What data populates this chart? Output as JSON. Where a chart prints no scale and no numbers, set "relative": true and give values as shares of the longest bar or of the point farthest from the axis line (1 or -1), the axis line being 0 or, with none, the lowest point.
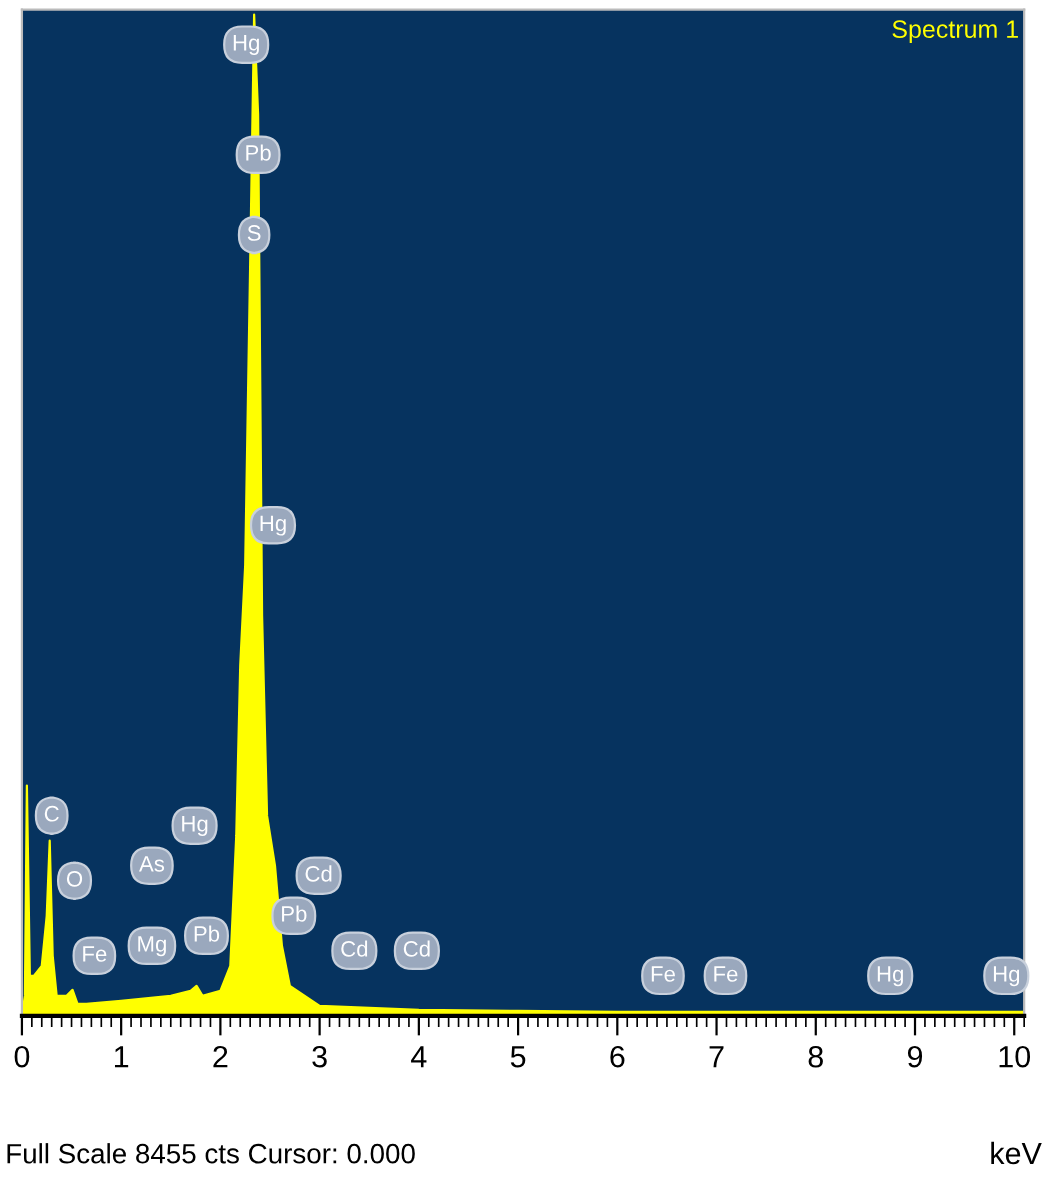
{
  "chart_data": {
    "type": "area",
    "title": "Spectrum 1",
    "xlabel": "keV",
    "relative": true,
    "x": [
      0,
      0.03,
      0.05,
      0.08,
      0.12,
      0.2,
      0.25,
      0.28,
      0.31,
      0.35,
      0.45,
      0.51,
      0.56,
      0.65,
      1.0,
      1.5,
      1.7,
      1.76,
      1.82,
      2.0,
      2.1,
      2.16,
      2.2,
      2.25,
      2.3,
      2.34,
      2.38,
      2.42,
      2.47,
      2.55,
      2.62,
      2.7,
      3.0,
      3.5,
      4.0,
      5.0,
      6.0,
      8.0,
      10.1
    ],
    "series": [
      {
        "color": "#ffff00",
        "values": [
          0,
          0.02,
          0.23,
          0.04,
          0.04,
          0.05,
          0.1,
          0.175,
          0.06,
          0.02,
          0.02,
          0.026,
          0.012,
          0.012,
          0.015,
          0.02,
          0.025,
          0.03,
          0.02,
          0.025,
          0.05,
          0.18,
          0.35,
          0.45,
          0.75,
          1.0,
          0.9,
          0.4,
          0.2,
          0.15,
          0.07,
          0.03,
          0.01,
          0.008,
          0.006,
          0.005,
          0.004,
          0.004,
          0.004
        ]
      }
    ],
    "xlim": [
      0,
      10.1
    ],
    "xticks": [
      0,
      1,
      2,
      3,
      4,
      5,
      6,
      7,
      8,
      9,
      10
    ],
    "annotations": [
      {
        "text": "Hg",
        "x": 2.26,
        "y": 0.97
      },
      {
        "text": "Pb",
        "x": 2.38,
        "y": 0.86
      },
      {
        "text": "S",
        "x": 2.34,
        "y": 0.78
      },
      {
        "text": "Hg",
        "x": 2.53,
        "y": 0.49
      },
      {
        "text": "C",
        "x": 0.3,
        "y": 0.2
      },
      {
        "text": "O",
        "x": 0.53,
        "y": 0.135
      },
      {
        "text": "Fe",
        "x": 0.73,
        "y": 0.06
      },
      {
        "text": "As",
        "x": 1.31,
        "y": 0.15
      },
      {
        "text": "Mg",
        "x": 1.31,
        "y": 0.07
      },
      {
        "text": "Hg",
        "x": 1.74,
        "y": 0.19
      },
      {
        "text": "Pb",
        "x": 1.86,
        "y": 0.08
      },
      {
        "text": "Pb",
        "x": 2.74,
        "y": 0.1
      },
      {
        "text": "Cd",
        "x": 2.99,
        "y": 0.14
      },
      {
        "text": "Cd",
        "x": 3.35,
        "y": 0.065
      },
      {
        "text": "Cd",
        "x": 3.98,
        "y": 0.065
      },
      {
        "text": "Fe",
        "x": 6.46,
        "y": 0.04
      },
      {
        "text": "Fe",
        "x": 7.09,
        "y": 0.04
      },
      {
        "text": "Hg",
        "x": 8.75,
        "y": 0.04
      },
      {
        "text": "Hg",
        "x": 9.92,
        "y": 0.04
      },
      "Full Scale 8455 cts Cursor: 0.000"
    ]
  }
}
